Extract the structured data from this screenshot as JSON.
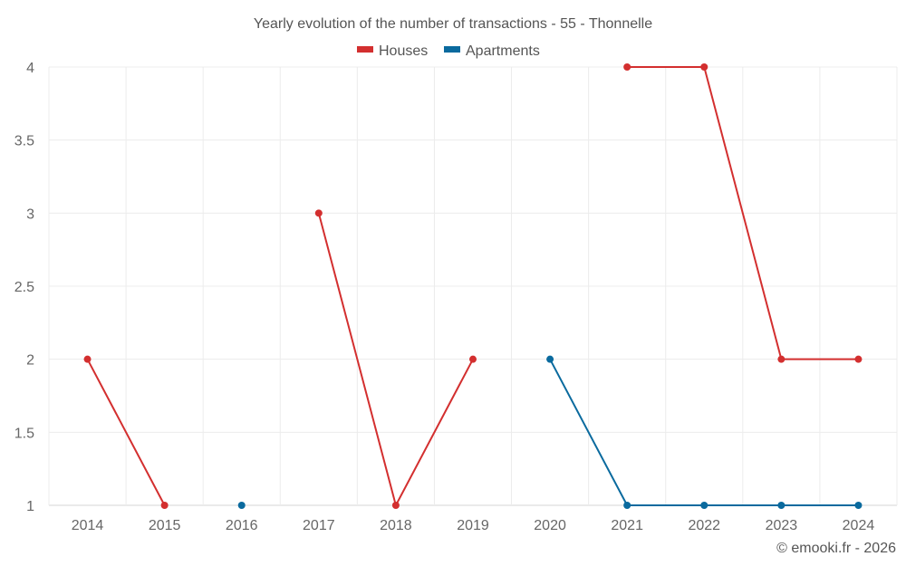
{
  "chart_data": {
    "type": "line",
    "title": "Yearly evolution of the number of transactions - 55 - Thonnelle",
    "categories": [
      "2014",
      "2015",
      "2016",
      "2017",
      "2018",
      "2019",
      "2020",
      "2021",
      "2022",
      "2023",
      "2024"
    ],
    "series": [
      {
        "name": "Houses",
        "color": "#d32f2f",
        "values": [
          2,
          1,
          null,
          3,
          1,
          2,
          null,
          4,
          4,
          2,
          2
        ]
      },
      {
        "name": "Apartments",
        "color": "#0a6a9e",
        "values": [
          null,
          null,
          1,
          null,
          null,
          null,
          2,
          1,
          1,
          1,
          1
        ]
      }
    ],
    "ylim": [
      1,
      4
    ],
    "yticks": [
      1,
      1.5,
      2,
      2.5,
      3,
      3.5,
      4
    ],
    "grid": true,
    "legend": "top-center",
    "xlabel": "",
    "ylabel": ""
  },
  "credit": "© emooki.fr - 2026"
}
